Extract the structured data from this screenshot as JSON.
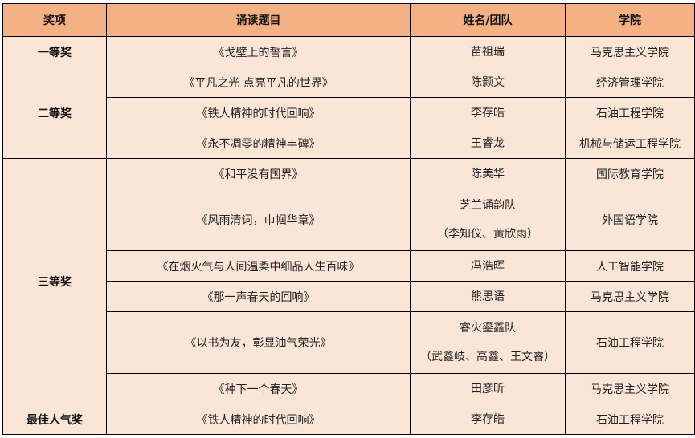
{
  "colors": {
    "header_bg": "#F4B183",
    "body_bg": "#FBE5D6",
    "border": "#000000"
  },
  "headers": [
    "奖项",
    "诵读题目",
    "姓名/团队",
    "学院"
  ],
  "groups": [
    {
      "award": "一等奖",
      "rows": [
        {
          "title": "《戈壁上的誓言》",
          "name": [
            "苗祖瑞"
          ],
          "college": "马克思主义学院"
        }
      ]
    },
    {
      "award": "二等奖",
      "rows": [
        {
          "title": "《平凡之光 点亮平凡的世界》",
          "name": [
            "陈颢文"
          ],
          "college": "经济管理学院"
        },
        {
          "title": "《铁人精神的时代回响》",
          "name": [
            "李存皓"
          ],
          "college": "石油工程学院"
        },
        {
          "title": "《永不凋零的精神丰碑》",
          "name": [
            "王睿龙"
          ],
          "college": "机械与储运工程学院"
        }
      ]
    },
    {
      "award": "三等奖",
      "rows": [
        {
          "title": "《和平没有国界》",
          "name": [
            "陈美华"
          ],
          "college": "国际教育学院"
        },
        {
          "title": "《风雨清词，巾帼华章》",
          "name": [
            "芝兰诵韵队",
            "（李知仪、黄欣雨）"
          ],
          "college": "外国语学院"
        },
        {
          "title": "《在烟火气与人间温柔中细品人生百味》",
          "name": [
            "冯浩晖"
          ],
          "college": "人工智能学院"
        },
        {
          "title": "《那一声春天的回响》",
          "name": [
            "熊思语"
          ],
          "college": "马克思主义学院"
        },
        {
          "title": "《以书为友，彰显油气荣光》",
          "name": [
            "睿火鎏鑫队",
            "（武鑫岐、高鑫、王文睿）"
          ],
          "college": "石油工程学院"
        },
        {
          "title": "《种下一个春天》",
          "name": [
            "田彦昕"
          ],
          "college": "马克思主义学院"
        }
      ]
    },
    {
      "award": "最佳人气奖",
      "rows": [
        {
          "title": "《铁人精神的时代回响》",
          "name": [
            "李存皓"
          ],
          "college": "石油工程学院"
        }
      ]
    }
  ]
}
